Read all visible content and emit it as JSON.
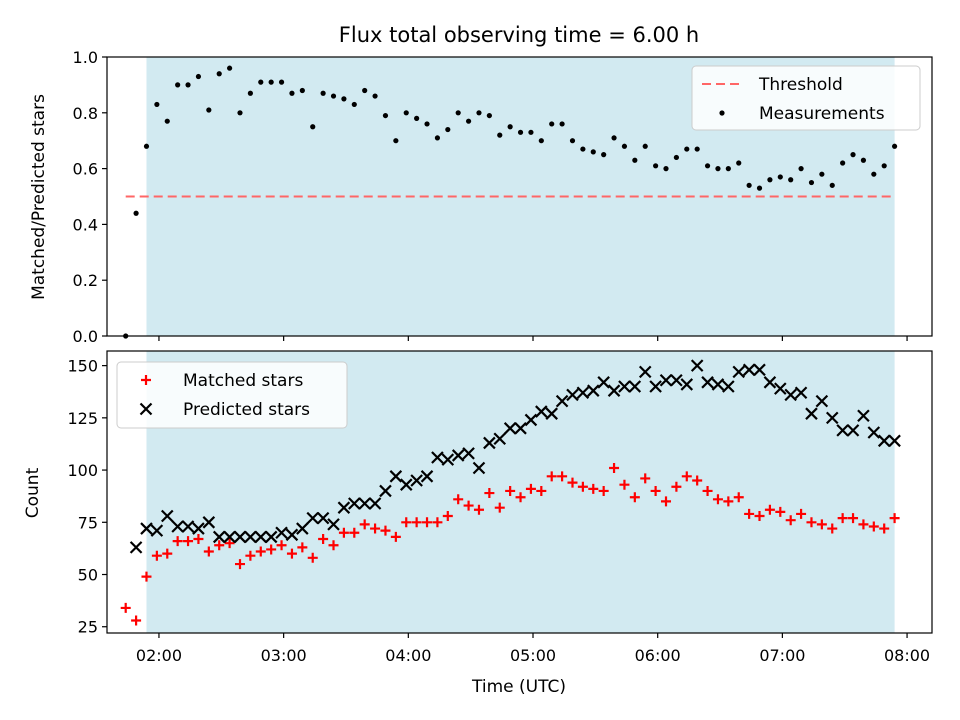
{
  "title": "Flux total observing time = 6.00 h",
  "colors": {
    "shade": "#add8e6",
    "threshold": "#ff6666",
    "measurement": "#000000",
    "matched": "#ff0000",
    "predicted": "#000000"
  },
  "chart_data": [
    {
      "type": "scatter",
      "xlabel": "",
      "ylabel": "Matched/Predicted stars",
      "ylim": [
        0,
        1.0
      ],
      "xlim": [
        "01:35",
        "08:12"
      ],
      "yticks": [
        "0.0",
        "0.2",
        "0.4",
        "0.6",
        "0.8",
        "1.0"
      ],
      "shaded_span": [
        "01:54",
        "07:54"
      ],
      "legend": {
        "placement": "top-right",
        "entries": [
          "Threshold",
          "Measurements"
        ]
      },
      "threshold": {
        "name": "Threshold",
        "value": 0.5,
        "x_range": [
          "01:44",
          "07:54"
        ]
      },
      "series": [
        {
          "name": "Measurements",
          "marker": "dot",
          "x": [
            "01:44",
            "01:49",
            "01:54",
            "01:59",
            "02:04",
            "02:09",
            "02:14",
            "02:19",
            "02:24",
            "02:29",
            "02:34",
            "02:39",
            "02:44",
            "02:49",
            "02:54",
            "02:59",
            "03:04",
            "03:09",
            "03:14",
            "03:19",
            "03:24",
            "03:29",
            "03:34",
            "03:39",
            "03:44",
            "03:49",
            "03:54",
            "03:59",
            "04:04",
            "04:09",
            "04:14",
            "04:19",
            "04:24",
            "04:29",
            "04:34",
            "04:39",
            "04:44",
            "04:49",
            "04:54",
            "04:59",
            "05:04",
            "05:09",
            "05:14",
            "05:19",
            "05:24",
            "05:29",
            "05:34",
            "05:39",
            "05:44",
            "05:49",
            "05:54",
            "05:59",
            "06:04",
            "06:09",
            "06:14",
            "06:19",
            "06:24",
            "06:29",
            "06:34",
            "06:39",
            "06:44",
            "06:49",
            "06:54",
            "06:59",
            "07:04",
            "07:09",
            "07:14",
            "07:19",
            "07:24",
            "07:29",
            "07:34",
            "07:39",
            "07:44",
            "07:49",
            "07:54"
          ],
          "y": [
            0.0,
            0.44,
            0.68,
            0.83,
            0.77,
            0.9,
            0.9,
            0.93,
            0.81,
            0.94,
            0.96,
            0.8,
            0.87,
            0.91,
            0.91,
            0.91,
            0.87,
            0.88,
            0.75,
            0.87,
            0.86,
            0.85,
            0.83,
            0.88,
            0.86,
            0.79,
            0.7,
            0.8,
            0.78,
            0.76,
            0.71,
            0.74,
            0.8,
            0.77,
            0.8,
            0.79,
            0.72,
            0.75,
            0.73,
            0.73,
            0.7,
            0.76,
            0.76,
            0.7,
            0.67,
            0.66,
            0.65,
            0.71,
            0.68,
            0.63,
            0.68,
            0.61,
            0.6,
            0.64,
            0.67,
            0.67,
            0.61,
            0.6,
            0.6,
            0.62,
            0.54,
            0.53,
            0.56,
            0.57,
            0.56,
            0.6,
            0.55,
            0.58,
            0.54,
            0.62,
            0.65,
            0.63,
            0.58,
            0.61,
            0.68
          ]
        }
      ]
    },
    {
      "type": "scatter",
      "xlabel": "Time (UTC)",
      "ylabel": "Count",
      "ylim": [
        22,
        157
      ],
      "xlim": [
        "01:35",
        "08:12"
      ],
      "xticks": [
        "02:00",
        "03:00",
        "04:00",
        "05:00",
        "06:00",
        "07:00",
        "08:00"
      ],
      "yticks": [
        "25",
        "50",
        "75",
        "100",
        "125",
        "150"
      ],
      "shaded_span": [
        "01:54",
        "07:54"
      ],
      "legend": {
        "placement": "top-left",
        "entries": [
          "Matched stars",
          "Predicted stars"
        ]
      },
      "series": [
        {
          "name": "Matched stars",
          "marker": "plus",
          "x": [
            "01:44",
            "01:49",
            "01:54",
            "01:59",
            "02:04",
            "02:09",
            "02:14",
            "02:19",
            "02:24",
            "02:29",
            "02:34",
            "02:39",
            "02:44",
            "02:49",
            "02:54",
            "02:59",
            "03:04",
            "03:09",
            "03:14",
            "03:19",
            "03:24",
            "03:29",
            "03:34",
            "03:39",
            "03:44",
            "03:49",
            "03:54",
            "03:59",
            "04:04",
            "04:09",
            "04:14",
            "04:19",
            "04:24",
            "04:29",
            "04:34",
            "04:39",
            "04:44",
            "04:49",
            "04:54",
            "04:59",
            "05:04",
            "05:09",
            "05:14",
            "05:19",
            "05:24",
            "05:29",
            "05:34",
            "05:39",
            "05:44",
            "05:49",
            "05:54",
            "05:59",
            "06:04",
            "06:09",
            "06:14",
            "06:19",
            "06:24",
            "06:29",
            "06:34",
            "06:39",
            "06:44",
            "06:49",
            "06:54",
            "06:59",
            "07:04",
            "07:09",
            "07:14",
            "07:19",
            "07:24",
            "07:29",
            "07:34",
            "07:39",
            "07:44",
            "07:49",
            "07:54"
          ],
          "y": [
            34,
            28,
            49,
            59,
            60,
            66,
            66,
            67,
            61,
            64,
            65,
            55,
            59,
            61,
            62,
            64,
            60,
            63,
            58,
            67,
            64,
            70,
            70,
            74,
            72,
            71,
            68,
            75,
            75,
            75,
            75,
            78,
            86,
            83,
            81,
            89,
            82,
            90,
            87,
            91,
            90,
            97,
            97,
            94,
            92,
            91,
            90,
            101,
            93,
            87,
            96,
            90,
            85,
            92,
            97,
            95,
            90,
            86,
            85,
            87,
            79,
            78,
            81,
            80,
            76,
            79,
            75,
            74,
            72,
            77,
            77,
            74,
            73,
            72,
            77
          ]
        },
        {
          "name": "Predicted stars",
          "marker": "x",
          "x": [
            "01:49",
            "01:54",
            "01:59",
            "02:04",
            "02:09",
            "02:14",
            "02:19",
            "02:24",
            "02:29",
            "02:34",
            "02:39",
            "02:44",
            "02:49",
            "02:54",
            "02:59",
            "03:04",
            "03:09",
            "03:14",
            "03:19",
            "03:24",
            "03:29",
            "03:34",
            "03:39",
            "03:44",
            "03:49",
            "03:54",
            "03:59",
            "04:04",
            "04:09",
            "04:14",
            "04:19",
            "04:24",
            "04:29",
            "04:34",
            "04:39",
            "04:44",
            "04:49",
            "04:54",
            "04:59",
            "05:04",
            "05:09",
            "05:14",
            "05:19",
            "05:24",
            "05:29",
            "05:34",
            "05:39",
            "05:44",
            "05:49",
            "05:54",
            "05:59",
            "06:04",
            "06:09",
            "06:14",
            "06:19",
            "06:24",
            "06:29",
            "06:34",
            "06:39",
            "06:44",
            "06:49",
            "06:54",
            "06:59",
            "07:04",
            "07:09",
            "07:14",
            "07:19",
            "07:24",
            "07:29",
            "07:34",
            "07:39",
            "07:44",
            "07:49",
            "07:54"
          ],
          "y": [
            63,
            72,
            71,
            78,
            73,
            73,
            72,
            75,
            68,
            68,
            68,
            68,
            68,
            68,
            70,
            69,
            72,
            77,
            77,
            74,
            82,
            84,
            84,
            84,
            90,
            97,
            93,
            95,
            97,
            106,
            105,
            107,
            108,
            101,
            113,
            115,
            120,
            120,
            124,
            128,
            127,
            133,
            136,
            137,
            138,
            142,
            138,
            140,
            140,
            147,
            140,
            143,
            143,
            141,
            150,
            142,
            141,
            140,
            147,
            148,
            148,
            142,
            139,
            136,
            137,
            127,
            133,
            125,
            119,
            119,
            126,
            118,
            114,
            114
          ]
        }
      ]
    }
  ]
}
